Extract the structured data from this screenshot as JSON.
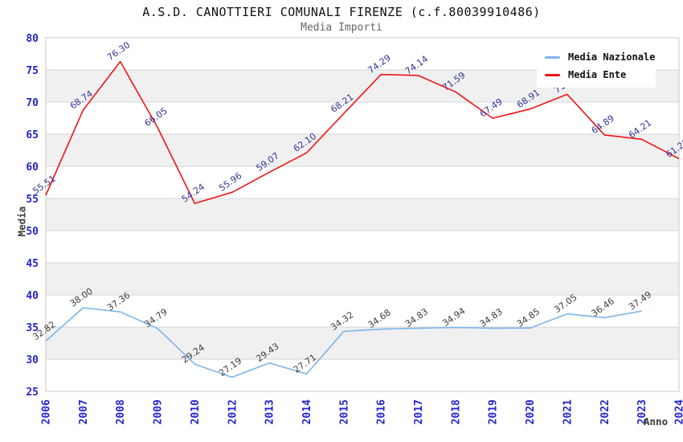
{
  "chart_data": {
    "type": "line",
    "title": "A.S.D. CANOTTIERI COMUNALI FIRENZE (c.f.80039910486)",
    "subtitle": "Media Importi",
    "xlabel": "Anno",
    "ylabel": "Media",
    "x": [
      2006,
      2007,
      2008,
      2009,
      2010,
      2012,
      2013,
      2014,
      2015,
      2016,
      2017,
      2018,
      2019,
      2020,
      2021,
      2022,
      2023,
      2024
    ],
    "series": [
      {
        "name": "Media Nazionale",
        "color": "#7cb5ec",
        "label_color": "#3d3d3d",
        "values": [
          32.82,
          38.0,
          37.36,
          34.79,
          29.24,
          27.19,
          29.43,
          27.71,
          34.32,
          34.68,
          34.83,
          34.94,
          34.83,
          34.85,
          37.05,
          36.46,
          37.49,
          null
        ]
      },
      {
        "name": "Media Ente",
        "color": "#f01414",
        "label_color": "#333399",
        "values": [
          55.51,
          68.74,
          76.3,
          66.05,
          54.24,
          55.96,
          59.07,
          62.1,
          68.21,
          74.29,
          74.14,
          71.59,
          67.49,
          68.91,
          71.2,
          64.89,
          64.21,
          61.2
        ]
      }
    ],
    "ylim": [
      25,
      80
    ],
    "ytick_step": 5,
    "yticks": [
      25,
      30,
      35,
      40,
      45,
      50,
      55,
      60,
      65,
      70,
      75,
      80
    ],
    "grid": true,
    "band_color": "#f0f0f0",
    "gridline_color": "#d6d6d6",
    "border_color": "#c9c9c9",
    "tick_color": "#2424cc",
    "legend_position": "top-right"
  }
}
